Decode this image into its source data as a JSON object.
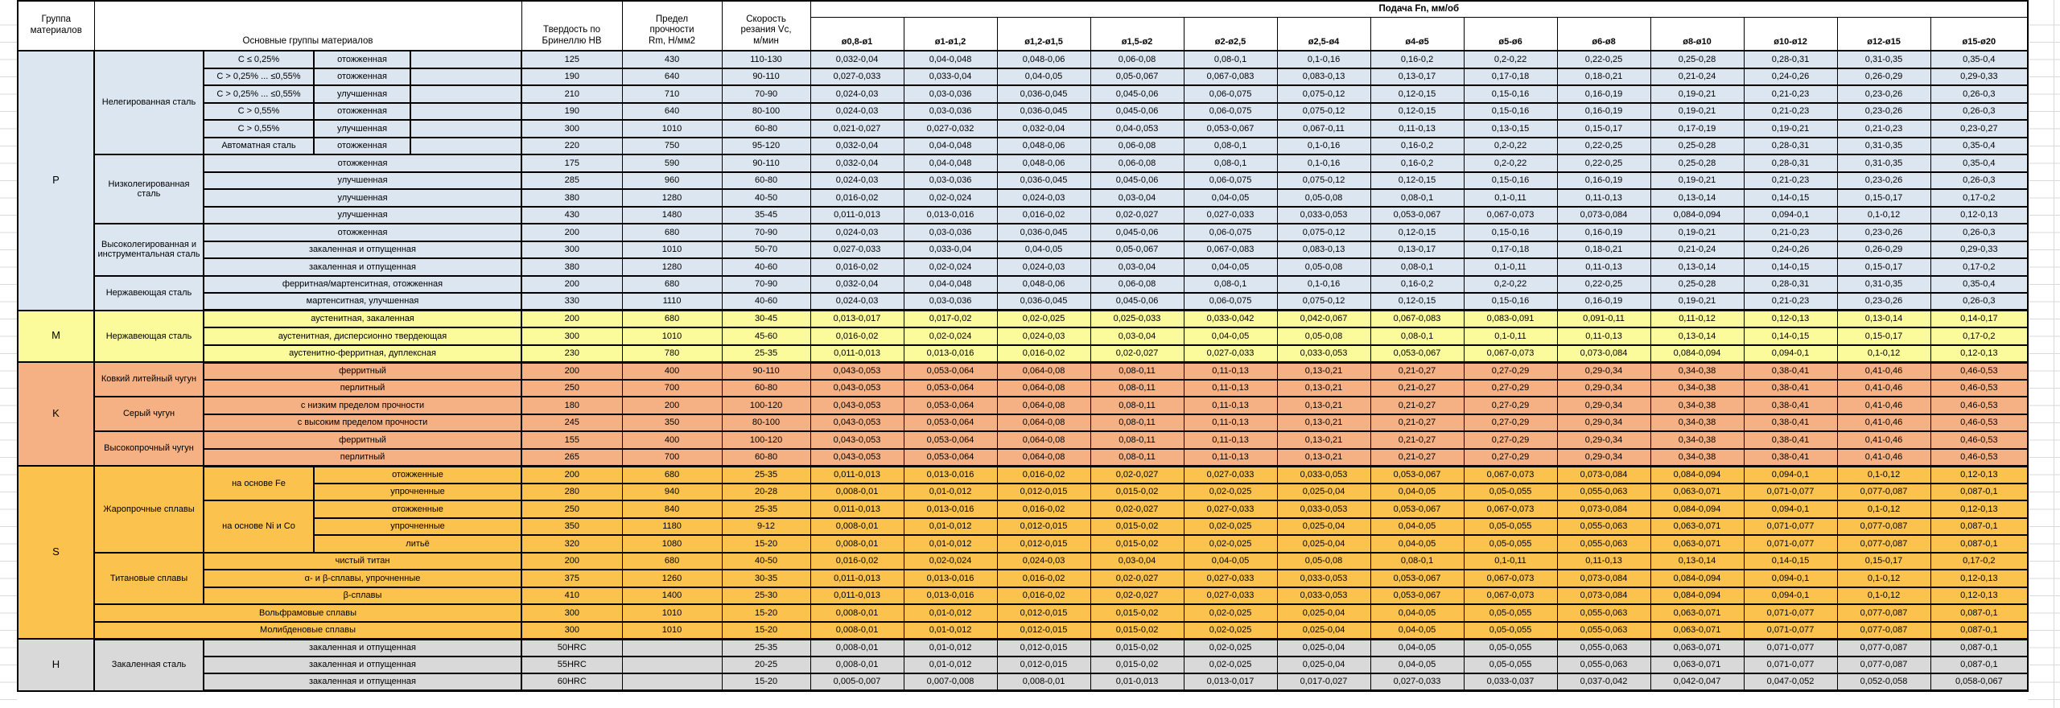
{
  "sheet": {
    "feed_title": "Подача Fn, мм/об",
    "col_headers": {
      "group": "Группа\nматериалов",
      "materials": "Основные группы материалов",
      "hardness": "Твердость по\nБринеллю HB",
      "strength": "Предел\nпрочности\nRm, Н/мм2",
      "speed": "Скорость\nрезания Vc,\nм/мин"
    },
    "diameters": [
      "ø0,8-ø1",
      "ø1-ø1,2",
      "ø1,2-ø1,5",
      "ø1,5-ø2",
      "ø2-ø2,5",
      "ø2,5-ø4",
      "ø4-ø5",
      "ø5-ø6",
      "ø6-ø8",
      "ø8-ø10",
      "ø10-ø12",
      "ø12-ø15",
      "ø15-ø20"
    ],
    "feed_patterns": {
      "P1": [
        "0,032-0,04",
        "0,04-0,048",
        "0,048-0,06",
        "0,06-0,08",
        "0,08-0,1",
        "0,1-0,16",
        "0,16-0,2",
        "0,2-0,22",
        "0,22-0,25",
        "0,25-0,28",
        "0,28-0,31",
        "0,31-0,35",
        "0,35-0,4"
      ],
      "P2": [
        "0,027-0,033",
        "0,033-0,04",
        "0,04-0,05",
        "0,05-0,067",
        "0,067-0,083",
        "0,083-0,13",
        "0,13-0,17",
        "0,17-0,18",
        "0,18-0,21",
        "0,21-0,24",
        "0,24-0,26",
        "0,26-0,29",
        "0,29-0,33"
      ],
      "P3": [
        "0,024-0,03",
        "0,03-0,036",
        "0,036-0,045",
        "0,045-0,06",
        "0,06-0,075",
        "0,075-0,12",
        "0,12-0,15",
        "0,15-0,16",
        "0,16-0,19",
        "0,19-0,21",
        "0,21-0,23",
        "0,23-0,26",
        "0,26-0,3"
      ],
      "P4": [
        "0,021-0,027",
        "0,027-0,032",
        "0,032-0,04",
        "0,04-0,053",
        "0,053-0,067",
        "0,067-0,11",
        "0,11-0,13",
        "0,13-0,15",
        "0,15-0,17",
        "0,17-0,19",
        "0,19-0,21",
        "0,21-0,23",
        "0,23-0,27"
      ],
      "P5": [
        "0,016-0,02",
        "0,02-0,024",
        "0,024-0,03",
        "0,03-0,04",
        "0,04-0,05",
        "0,05-0,08",
        "0,08-0,1",
        "0,1-0,11",
        "0,11-0,13",
        "0,13-0,14",
        "0,14-0,15",
        "0,15-0,17",
        "0,17-0,2"
      ],
      "P6": [
        "0,011-0,013",
        "0,013-0,016",
        "0,016-0,02",
        "0,02-0,027",
        "0,027-0,033",
        "0,033-0,053",
        "0,053-0,067",
        "0,067-0,073",
        "0,073-0,084",
        "0,084-0,094",
        "0,094-0,1",
        "0,1-0,12",
        "0,12-0,13"
      ],
      "M1": [
        "0,013-0,017",
        "0,017-0,02",
        "0,02-0,025",
        "0,025-0,033",
        "0,033-0,042",
        "0,042-0,067",
        "0,067-0,083",
        "0,083-0,091",
        "0,091-0,11",
        "0,11-0,12",
        "0,12-0,13",
        "0,13-0,14",
        "0,14-0,17"
      ],
      "K1": [
        "0,043-0,053",
        "0,053-0,064",
        "0,064-0,08",
        "0,08-0,11",
        "0,11-0,13",
        "0,13-0,21",
        "0,21-0,27",
        "0,27-0,29",
        "0,29-0,34",
        "0,34-0,38",
        "0,38-0,41",
        "0,41-0,46",
        "0,46-0,53"
      ],
      "S1": [
        "0,008-0,01",
        "0,01-0,012",
        "0,012-0,015",
        "0,015-0,02",
        "0,02-0,025",
        "0,025-0,04",
        "0,04-0,05",
        "0,05-0,055",
        "0,055-0,063",
        "0,063-0,071",
        "0,071-0,077",
        "0,077-0,087",
        "0,087-0,1"
      ],
      "H1": [
        "0,005-0,007",
        "0,007-0,008",
        "0,008-0,01",
        "0,01-0,013",
        "0,013-0,017",
        "0,017-0,027",
        "0,027-0,033",
        "0,033-0,037",
        "0,037-0,042",
        "0,042-0,047",
        "0,047-0,052",
        "0,052-0,058",
        "0,058-0,067"
      ]
    },
    "groups": [
      {
        "code": "P",
        "color": "#DCE6F1",
        "materials": [
          {
            "name": "Нелегированная сталь",
            "layout": "split",
            "rows": [
              {
                "c1": "C ≤ 0,25%",
                "c2": "отожженная",
                "hb": "125",
                "rm": "430",
                "vc": "110-130",
                "feeds": "P1"
              },
              {
                "c1": "C > 0,25% ... ≤0,55%",
                "c2": "отожженная",
                "hb": "190",
                "rm": "640",
                "vc": "90-110",
                "feeds": "P2"
              },
              {
                "c1": "C > 0,25% ... ≤0,55%",
                "c2": "улучшенная",
                "hb": "210",
                "rm": "710",
                "vc": "70-90",
                "feeds": "P3"
              },
              {
                "c1": "C > 0,55%",
                "c2": "отожженная",
                "hb": "190",
                "rm": "640",
                "vc": "80-100",
                "feeds": "P3"
              },
              {
                "c1": "C > 0,55%",
                "c2": "улучшенная",
                "hb": "300",
                "rm": "1010",
                "vc": "60-80",
                "feeds": "P4"
              },
              {
                "c1": "Автоматная сталь",
                "c2": "отожженная",
                "hb": "220",
                "rm": "750",
                "vc": "95-120",
                "feeds": "P1"
              }
            ]
          },
          {
            "name": "Низколегированная сталь",
            "layout": "merged",
            "rows": [
              {
                "c": "отожженная",
                "hb": "175",
                "rm": "590",
                "vc": "90-110",
                "feeds": "P1"
              },
              {
                "c": "улучшенная",
                "hb": "285",
                "rm": "960",
                "vc": "60-80",
                "feeds": "P3"
              },
              {
                "c": "улучшенная",
                "hb": "380",
                "rm": "1280",
                "vc": "40-50",
                "feeds": "P5"
              },
              {
                "c": "улучшенная",
                "hb": "430",
                "rm": "1480",
                "vc": "35-45",
                "feeds": "P6"
              }
            ]
          },
          {
            "name": "Высоколегированная и инструментальная сталь",
            "layout": "merged",
            "rows": [
              {
                "c": "отожженная",
                "hb": "200",
                "rm": "680",
                "vc": "70-90",
                "feeds": "P3"
              },
              {
                "c": "закаленная и отпущенная",
                "hb": "300",
                "rm": "1010",
                "vc": "50-70",
                "feeds": "P2"
              },
              {
                "c": "закаленная и отпущенная",
                "hb": "380",
                "rm": "1280",
                "vc": "40-60",
                "feeds": "P5"
              }
            ]
          },
          {
            "name": "Нержавеющая сталь",
            "layout": "merged",
            "rows": [
              {
                "c": "ферритная/мартенситная, отожженная",
                "hb": "200",
                "rm": "680",
                "vc": "70-90",
                "feeds": "P1"
              },
              {
                "c": "мартенситная, улучшенная",
                "hb": "330",
                "rm": "1110",
                "vc": "40-60",
                "feeds": "P3"
              }
            ]
          }
        ]
      },
      {
        "code": "M",
        "color": "#FBFB9B",
        "materials": [
          {
            "name": "Нержавеющая сталь",
            "layout": "merged",
            "rows": [
              {
                "c": "аустенитная, закаленная",
                "hb": "200",
                "rm": "680",
                "vc": "30-45",
                "feeds": "M1"
              },
              {
                "c": "аустенитная, дисперсионно твердеющая",
                "hb": "300",
                "rm": "1010",
                "vc": "45-60",
                "feeds": "P5"
              },
              {
                "c": "аустенитно-ферритная, дуплексная",
                "hb": "230",
                "rm": "780",
                "vc": "25-35",
                "feeds": "P6"
              }
            ]
          }
        ]
      },
      {
        "code": "K",
        "color": "#F5B183",
        "materials": [
          {
            "name": "Ковкий литейный чугун",
            "layout": "merged",
            "rows": [
              {
                "c": "ферритный",
                "hb": "200",
                "rm": "400",
                "vc": "90-110",
                "feeds": "K1"
              },
              {
                "c": "перлитный",
                "hb": "250",
                "rm": "700",
                "vc": "60-80",
                "feeds": "K1"
              }
            ]
          },
          {
            "name": "Серый чугун",
            "layout": "merged",
            "rows": [
              {
                "c": "с низким пределом прочности",
                "hb": "180",
                "rm": "200",
                "vc": "100-120",
                "feeds": "K1"
              },
              {
                "c": "с высоким пределом прочности",
                "hb": "245",
                "rm": "350",
                "vc": "80-100",
                "feeds": "K1"
              }
            ]
          },
          {
            "name": "Высокопрочный чугун",
            "layout": "merged",
            "rows": [
              {
                "c": "ферритный",
                "hb": "155",
                "rm": "400",
                "vc": "100-120",
                "feeds": "K1"
              },
              {
                "c": "перлитный",
                "hb": "265",
                "rm": "700",
                "vc": "60-80",
                "feeds": "K1"
              }
            ]
          }
        ]
      },
      {
        "code": "S",
        "color": "#FBC34D",
        "materials": [
          {
            "name": "Жаропрочные сплавы",
            "layout": "subgroups",
            "subgroups": [
              {
                "label": "на основе Fe",
                "rows": [
                  {
                    "c": "отожженные",
                    "hb": "200",
                    "rm": "680",
                    "vc": "25-35",
                    "feeds": "P6"
                  },
                  {
                    "c": "упрочненные",
                    "hb": "280",
                    "rm": "940",
                    "vc": "20-28",
                    "feeds": "S1"
                  }
                ]
              },
              {
                "label": "на основе Ni и Co",
                "rows": [
                  {
                    "c": "отожженные",
                    "hb": "250",
                    "rm": "840",
                    "vc": "25-35",
                    "feeds": "P6"
                  },
                  {
                    "c": "упрочненные",
                    "hb": "350",
                    "rm": "1180",
                    "vc": "9-12",
                    "feeds": "S1"
                  },
                  {
                    "c": "литьё",
                    "hb": "320",
                    "rm": "1080",
                    "vc": "15-20",
                    "feeds": "S1"
                  }
                ]
              }
            ]
          },
          {
            "name": "Титановые сплавы",
            "layout": "merged",
            "rows": [
              {
                "c": "чистый титан",
                "hb": "200",
                "rm": "680",
                "vc": "40-50",
                "feeds": "P5"
              },
              {
                "c": "α- и β-сплавы, упрочненные",
                "hb": "375",
                "rm": "1260",
                "vc": "30-35",
                "feeds": "P6"
              },
              {
                "c": "β-сплавы",
                "hb": "410",
                "rm": "1400",
                "vc": "25-30",
                "feeds": "P6"
              }
            ]
          },
          {
            "name": "Вольфрамовые сплавы",
            "layout": "wide",
            "rows": [
              {
                "hb": "300",
                "rm": "1010",
                "vc": "15-20",
                "feeds": "S1"
              }
            ]
          },
          {
            "name": "Молибденовые сплавы",
            "layout": "wide",
            "rows": [
              {
                "hb": "300",
                "rm": "1010",
                "vc": "15-20",
                "feeds": "S1"
              }
            ]
          }
        ]
      },
      {
        "code": "H",
        "color": "#D9D9D9",
        "materials": [
          {
            "name": "Закаленная сталь",
            "layout": "merged",
            "rows": [
              {
                "c": "закаленная и отпущенная",
                "hb": "50HRC",
                "rm": "",
                "vc": "25-35",
                "feeds": "S1"
              },
              {
                "c": "закаленная и отпущенная",
                "hb": "55HRC",
                "rm": "",
                "vc": "20-25",
                "feeds": "S1"
              },
              {
                "c": "закаленная и отпущенная",
                "hb": "60HRC",
                "rm": "",
                "vc": "15-20",
                "feeds": "H1"
              }
            ]
          }
        ]
      }
    ]
  }
}
